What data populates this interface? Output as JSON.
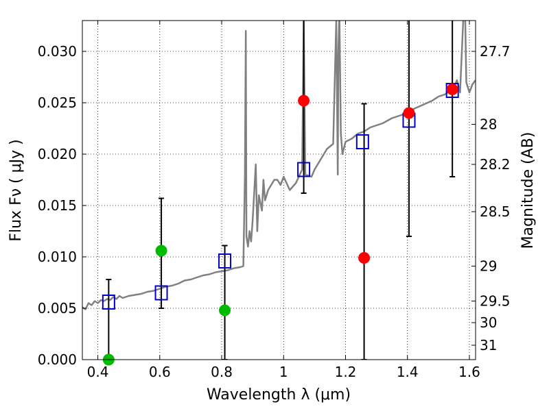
{
  "chart_data": {
    "type": "scatter",
    "xlabel": "Wavelength  λ (μm)",
    "ylabel": "Flux  Fν  ( μJy )",
    "ylabel_right": "Magnitude (AB)",
    "xlim": [
      0.35,
      1.62
    ],
    "ylim": [
      0.0,
      0.033
    ],
    "grid": true,
    "x_ticks": [
      0.4,
      0.6,
      0.8,
      1.0,
      1.2,
      1.4,
      1.6
    ],
    "x_tick_labels": [
      "0.4",
      "0.6",
      "0.8",
      "1",
      "1.2",
      "1.4",
      "1.6"
    ],
    "y_ticks": [
      0.0,
      0.005,
      0.01,
      0.015,
      0.02,
      0.025,
      0.03
    ],
    "y_tick_labels": [
      "0.000",
      "0.005",
      "0.010",
      "0.015",
      "0.020",
      "0.025",
      "0.030"
    ],
    "right_ticks": [
      {
        "label": "27.7",
        "flux": 0.03
      },
      {
        "label": "28",
        "flux": 0.0229
      },
      {
        "label": "28.2",
        "flux": 0.019
      },
      {
        "label": "28.5",
        "flux": 0.0144
      },
      {
        "label": "29",
        "flux": 0.0091
      },
      {
        "label": "29.5",
        "flux": 0.0057
      },
      {
        "label": "30",
        "flux": 0.0036
      },
      {
        "label": "31",
        "flux": 0.0014
      }
    ],
    "series": [
      {
        "kind": "model_spectrum_line",
        "color": "#808080",
        "x": [
          0.35,
          0.36,
          0.37,
          0.38,
          0.39,
          0.4,
          0.41,
          0.42,
          0.43,
          0.44,
          0.45,
          0.46,
          0.47,
          0.48,
          0.49,
          0.5,
          0.52,
          0.54,
          0.56,
          0.58,
          0.6,
          0.62,
          0.64,
          0.66,
          0.68,
          0.7,
          0.72,
          0.74,
          0.76,
          0.78,
          0.8,
          0.82,
          0.84,
          0.86,
          0.87,
          0.875,
          0.878,
          0.88,
          0.885,
          0.89,
          0.895,
          0.9,
          0.91,
          0.915,
          0.92,
          0.93,
          0.935,
          0.94,
          0.95,
          0.96,
          0.97,
          0.98,
          0.99,
          1.0,
          1.02,
          1.04,
          1.06,
          1.065,
          1.07,
          1.09,
          1.1,
          1.12,
          1.14,
          1.16,
          1.17,
          1.175,
          1.177,
          1.18,
          1.185,
          1.19,
          1.2,
          1.22,
          1.24,
          1.26,
          1.28,
          1.3,
          1.32,
          1.35,
          1.38,
          1.4,
          1.42,
          1.45,
          1.48,
          1.5,
          1.52,
          1.54,
          1.55,
          1.56,
          1.57,
          1.58,
          1.585,
          1.59,
          1.6,
          1.61,
          1.62
        ],
        "y": [
          0.0051,
          0.0049,
          0.0055,
          0.0053,
          0.0057,
          0.0055,
          0.0058,
          0.0057,
          0.0059,
          0.0058,
          0.0061,
          0.0059,
          0.0062,
          0.006,
          0.0061,
          0.0062,
          0.0063,
          0.0064,
          0.0066,
          0.0067,
          0.0069,
          0.0071,
          0.0072,
          0.0074,
          0.0077,
          0.0078,
          0.008,
          0.0082,
          0.0083,
          0.0085,
          0.0086,
          0.0087,
          0.0089,
          0.009,
          0.0091,
          0.018,
          0.032,
          0.012,
          0.011,
          0.0125,
          0.0115,
          0.0135,
          0.019,
          0.0125,
          0.016,
          0.0145,
          0.0175,
          0.0155,
          0.0165,
          0.017,
          0.0175,
          0.0175,
          0.017,
          0.0178,
          0.0165,
          0.0172,
          0.0185,
          0.033,
          0.018,
          0.0178,
          0.0185,
          0.0195,
          0.0205,
          0.021,
          0.033,
          0.018,
          0.03,
          0.034,
          0.022,
          0.02,
          0.0212,
          0.0215,
          0.022,
          0.0222,
          0.0226,
          0.0228,
          0.023,
          0.0235,
          0.0238,
          0.024,
          0.0244,
          0.0248,
          0.0252,
          0.0256,
          0.0258,
          0.0262,
          0.0265,
          0.0272,
          0.026,
          0.033,
          0.036,
          0.027,
          0.026,
          0.0268,
          0.0272
        ]
      },
      {
        "kind": "model_bandpass_boxes",
        "color": "#0000cc",
        "x": [
          0.435,
          0.605,
          0.81,
          1.065,
          1.255,
          1.405,
          1.545
        ],
        "y": [
          0.0056,
          0.0065,
          0.0096,
          0.0185,
          0.0212,
          0.0233,
          0.0262
        ]
      },
      {
        "kind": "detections_optical",
        "color": "#00bb00",
        "x": [
          0.435,
          0.605,
          0.81
        ],
        "y": [
          0.0,
          0.0106,
          0.0048
        ],
        "err_low": [
          0.0,
          0.005,
          0.0
        ],
        "err_high": [
          0.0078,
          0.0157,
          0.0111
        ]
      },
      {
        "kind": "detections_nir",
        "color": "#ff0000",
        "x": [
          1.065,
          1.26,
          1.405,
          1.545
        ],
        "y": [
          0.0252,
          0.0099,
          0.024,
          0.0263
        ],
        "err_low": [
          0.0162,
          0.0,
          0.012,
          0.0178
        ],
        "err_high": [
          0.036,
          0.0249,
          0.036,
          0.036
        ]
      }
    ]
  }
}
